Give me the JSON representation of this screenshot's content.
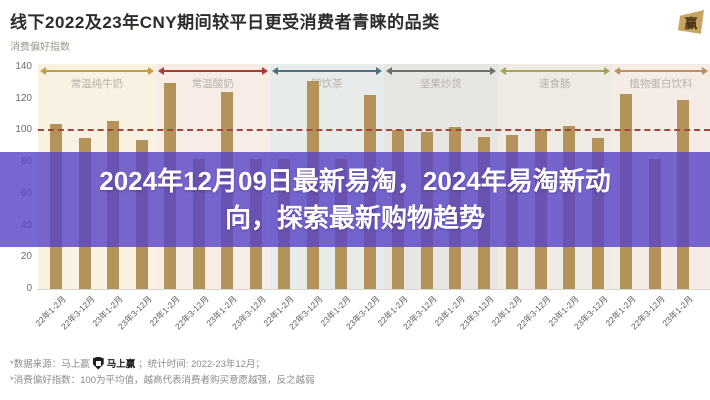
{
  "header": {
    "brand_logo_char": "赢"
  },
  "overlay": {
    "line1": "2024年12月09日最新易淘，2024年易淘新动",
    "line2": "向，探索最新购物趋势",
    "color": "#5642c6"
  },
  "footnotes": {
    "source_prefix": "*数据来源：马上赢",
    "source_logo_text": "马上赢",
    "source_suffix": "；统计时间: 2022-23年12月；",
    "index_note": "*消费偏好指数：100为平均值，越高代表消费者购买意愿越强，反之越弱"
  },
  "chart_data": {
    "type": "bar",
    "title": "线下2022及23年CNY期间较平日更受消费者青睐的品类",
    "ylabel": "消费偏好指数",
    "xlabel": "",
    "ylim": [
      0,
      140
    ],
    "yticks": [
      140,
      120,
      100,
      80,
      60,
      40,
      20,
      0
    ],
    "grid": false,
    "legend_position": "none",
    "bar_color": "#b4935a",
    "reference_line": {
      "value": 100,
      "style": "dashed",
      "color": "#a3463d"
    },
    "series_labels": [
      "22年1-2月",
      "22年3-12月",
      "23年1-2月",
      "23年3-12月"
    ],
    "groups": [
      {
        "name": "常温纯牛奶",
        "bg": "#f9f1e1",
        "arrow": "#c89b3c",
        "values": [
          104,
          95,
          106,
          94
        ]
      },
      {
        "name": "常温酸奶",
        "bg": "#f8ece7",
        "arrow": "#b0392f",
        "values": [
          130,
          82,
          124,
          82
        ]
      },
      {
        "name": "即饮茶",
        "bg": "#e7ebea",
        "arrow": "#4a7280",
        "values": [
          82,
          131,
          82,
          122
        ]
      },
      {
        "name": "坚果炒货",
        "bg": "#e8e6e2",
        "arrow": "#6f6f6b",
        "values": [
          100,
          99,
          102,
          96
        ]
      },
      {
        "name": "速食肠",
        "bg": "#edebe3",
        "arrow": "#a8a353",
        "values": [
          97,
          101,
          103,
          95
        ]
      },
      {
        "name": "植物蛋白饮料",
        "bg": "#f5ece6",
        "arrow": "#bf8f5f",
        "values": [
          123,
          82,
          119,
          null
        ]
      }
    ]
  }
}
